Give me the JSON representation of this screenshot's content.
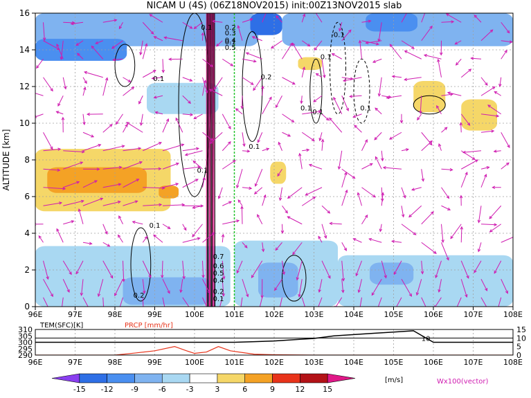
{
  "chart_data": [
    {
      "type": "heatmap",
      "title": "NICAM U (4S) (06Z18NOV2015) init:00Z13NOV2015 slab",
      "ylabel": "ALTITUDE [km]",
      "xlim": [
        96,
        108
      ],
      "ylim": [
        0,
        16
      ],
      "x_ticks": [
        "96E",
        "97E",
        "98E",
        "99E",
        "100E",
        "101E",
        "102E",
        "103E",
        "104E",
        "105E",
        "106E",
        "107E",
        "108E"
      ],
      "y_ticks": [
        "0",
        "2",
        "4",
        "6",
        "8",
        "10",
        "12",
        "14",
        "16"
      ],
      "grid": true,
      "shading_regions": [
        {
          "x": [
            96,
            101.6
          ],
          "y": [
            14.2,
            16
          ],
          "value": -6
        },
        {
          "x": [
            96,
            98.3
          ],
          "y": [
            13.4,
            14.6
          ],
          "value": -9
        },
        {
          "x": [
            101.4,
            102.2
          ],
          "y": [
            14.8,
            16
          ],
          "value": -12
        },
        {
          "x": [
            102.2,
            108
          ],
          "y": [
            14.2,
            16
          ],
          "value": -6
        },
        {
          "x": [
            104.3,
            105.6
          ],
          "y": [
            15.0,
            16
          ],
          "value": -9
        },
        {
          "x": [
            98.8,
            100.6
          ],
          "y": [
            10.5,
            12.2
          ],
          "value": -3
        },
        {
          "x": [
            96,
            99.4
          ],
          "y": [
            5.2,
            8.6
          ],
          "value": 4
        },
        {
          "x": [
            96.3,
            98.8
          ],
          "y": [
            6.2,
            7.6
          ],
          "value": 7
        },
        {
          "x": [
            99.1,
            99.6
          ],
          "y": [
            5.9,
            6.6
          ],
          "value": 7
        },
        {
          "x": [
            105.5,
            106.3
          ],
          "y": [
            10.6,
            12.3
          ],
          "value": 4
        },
        {
          "x": [
            106.7,
            107.6
          ],
          "y": [
            9.6,
            11.3
          ],
          "value": 4
        },
        {
          "x": [
            102.6,
            103.2
          ],
          "y": [
            12.9,
            13.6
          ],
          "value": 4
        },
        {
          "x": [
            101.9,
            102.3
          ],
          "y": [
            6.7,
            7.9
          ],
          "value": 4
        },
        {
          "x": [
            96,
            100.9
          ],
          "y": [
            0,
            3.3
          ],
          "value": -4
        },
        {
          "x": [
            98.2,
            100.4
          ],
          "y": [
            0.1,
            1.6
          ],
          "value": -7
        },
        {
          "x": [
            101,
            103.6
          ],
          "y": [
            0,
            3.6
          ],
          "value": -4
        },
        {
          "x": [
            101.6,
            102.6
          ],
          "y": [
            0.5,
            2.4
          ],
          "value": -8
        },
        {
          "x": [
            103.6,
            108
          ],
          "y": [
            0,
            2.8
          ],
          "value": -4
        },
        {
          "x": [
            104.4,
            105.5
          ],
          "y": [
            1.2,
            2.4
          ],
          "value": -7
        }
      ],
      "contour_labels": [
        {
          "x": 100.3,
          "y": 15.1,
          "text": "0.1"
        },
        {
          "x": 100.9,
          "y": 15.1,
          "text": "0.2"
        },
        {
          "x": 100.9,
          "y": 14.8,
          "text": "0.3"
        },
        {
          "x": 100.9,
          "y": 14.4,
          "text": "0.4"
        },
        {
          "x": 100.9,
          "y": 14.0,
          "text": "0.5"
        },
        {
          "x": 99.1,
          "y": 12.3,
          "text": "0.1"
        },
        {
          "x": 100.9,
          "y": 14.3,
          "text": "0.1"
        },
        {
          "x": 101.8,
          "y": 12.4,
          "text": "0.2"
        },
        {
          "x": 103.1,
          "y": 10.5,
          "text": "0.1"
        },
        {
          "x": 103.6,
          "y": 14.7,
          "text": "-0.1"
        },
        {
          "x": 103.3,
          "y": 13.5,
          "text": "0.1"
        },
        {
          "x": 102.8,
          "y": 10.7,
          "text": "0.1"
        },
        {
          "x": 104.3,
          "y": 10.7,
          "text": "0.1"
        },
        {
          "x": 101.5,
          "y": 8.6,
          "text": "0.1"
        },
        {
          "x": 100.2,
          "y": 7.3,
          "text": "0.1"
        },
        {
          "x": 99.0,
          "y": 4.3,
          "text": "0.1"
        },
        {
          "x": 100.6,
          "y": 2.6,
          "text": "0.7"
        },
        {
          "x": 100.6,
          "y": 2.1,
          "text": "0.6"
        },
        {
          "x": 100.6,
          "y": 1.7,
          "text": "0.5"
        },
        {
          "x": 100.6,
          "y": 1.3,
          "text": "0.4"
        },
        {
          "x": 100.6,
          "y": 0.7,
          "text": "0.2"
        },
        {
          "x": 100.6,
          "y": 0.3,
          "text": "0.1"
        },
        {
          "x": 98.6,
          "y": 0.5,
          "text": "0.2"
        }
      ],
      "contour_loops": [
        {
          "x": [
            99.6,
            100.4
          ],
          "y": [
            6,
            16
          ],
          "style": "solid"
        },
        {
          "x": [
            101.2,
            101.7
          ],
          "y": [
            9,
            15
          ],
          "style": "solid"
        },
        {
          "x": [
            102.9,
            103.2
          ],
          "y": [
            10,
            13.5
          ],
          "style": "solid"
        },
        {
          "x": [
            103.4,
            103.8
          ],
          "y": [
            10.5,
            15.5
          ],
          "style": "dashed"
        },
        {
          "x": [
            98.0,
            98.5
          ],
          "y": [
            12,
            14.3
          ],
          "style": "solid"
        },
        {
          "x": [
            98.4,
            98.9
          ],
          "y": [
            0.3,
            4.3
          ],
          "style": "solid"
        },
        {
          "x": [
            102.2,
            102.8
          ],
          "y": [
            0.3,
            2.8
          ],
          "style": "solid"
        },
        {
          "x": [
            104.0,
            104.4
          ],
          "y": [
            10,
            13.5
          ],
          "style": "dashed"
        },
        {
          "x": [
            105.5,
            106.3
          ],
          "y": [
            10.5,
            11.5
          ],
          "style": "solid"
        }
      ],
      "vector_label": "Wx100(vector)"
    },
    {
      "type": "line",
      "legend": [
        "TEM(SFC)[K]",
        "PRCP [mm/hr]"
      ],
      "xlim": [
        96,
        108
      ],
      "x_ticks": [
        "96E",
        "97E",
        "98E",
        "99E",
        "100E",
        "101E",
        "102E",
        "103E",
        "104E",
        "105E",
        "106E",
        "107E",
        "108E"
      ],
      "left_ticks": [
        "290",
        "295",
        "300",
        "305",
        "310"
      ],
      "left_ylim": [
        290,
        310
      ],
      "right_ticks": [
        "0",
        "5",
        "10",
        "15"
      ],
      "right_ylim": [
        0,
        15
      ],
      "inline_label": "10",
      "series": [
        {
          "name": "TEM(SFC)[K]",
          "color": "#000000",
          "x": [
            96,
            97,
            98,
            99,
            100,
            100.5,
            101,
            101.5,
            102,
            102.5,
            103,
            103.5,
            104,
            104.5,
            105,
            105.5,
            106,
            106.5,
            107,
            108
          ],
          "y": [
            300,
            300,
            300,
            300,
            300,
            300,
            300,
            300.5,
            301,
            302,
            303,
            305,
            306,
            307,
            308,
            309,
            300,
            300,
            300,
            300
          ]
        },
        {
          "name": "PRCP [mm/hr]",
          "color": "#e8331a",
          "x": [
            96,
            97,
            98,
            98.5,
            99,
            99.5,
            99.8,
            100,
            100.3,
            100.6,
            100.9,
            101.5,
            102,
            103,
            104,
            105,
            106,
            107,
            108
          ],
          "y": [
            0,
            0,
            0,
            1.2,
            2.5,
            5,
            2.5,
            1,
            1.8,
            5,
            2.5,
            0.5,
            0.2,
            0,
            0,
            0,
            0,
            0,
            0
          ]
        }
      ]
    }
  ],
  "colorbar": {
    "ticks": [
      "-15",
      "-12",
      "-9",
      "-6",
      "-3",
      "3",
      "6",
      "9",
      "12",
      "15"
    ],
    "unit": "[m/s]",
    "colors": [
      "#8a3ff0",
      "#2e6fe6",
      "#4a8ff0",
      "#7fb3f0",
      "#a9d8f2",
      "#ffffff",
      "#f5d768",
      "#f4a225",
      "#e8331a",
      "#b31217",
      "#e01888"
    ]
  },
  "colors": {
    "vector": "#cf1bb0",
    "grid": "#a0a0a0",
    "green_line": "#22c22a"
  }
}
